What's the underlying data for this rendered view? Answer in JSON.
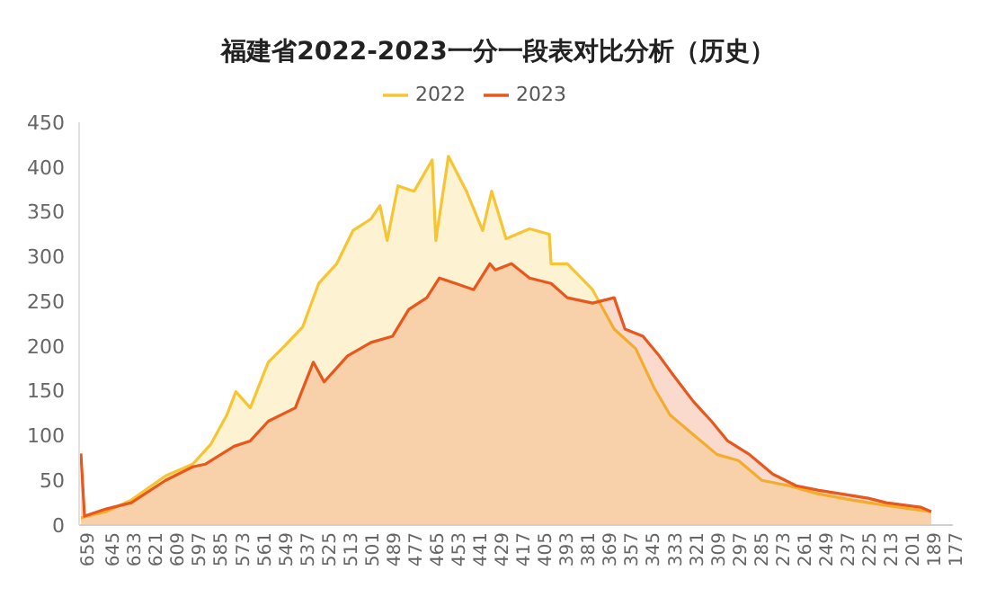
{
  "chart_data": {
    "type": "area",
    "title": "福建省2022-2023一分一段表对比分析（历史）",
    "series": [
      {
        "name": "2022",
        "color": "#f7c531",
        "x": [
          659,
          645,
          631,
          612,
          597,
          587,
          578,
          573,
          565,
          555,
          546,
          536,
          527,
          517,
          508,
          498,
          493,
          489,
          483,
          474,
          464,
          462,
          455,
          445,
          436,
          431,
          423,
          410,
          399,
          398,
          389,
          375,
          363,
          351,
          341,
          332,
          319,
          306,
          294,
          281,
          266,
          250,
          231,
          212,
          187
        ],
        "values": [
          8,
          15,
          28,
          55,
          68,
          90,
          123,
          149,
          131,
          182,
          200,
          221,
          270,
          292,
          329,
          342,
          357,
          318,
          379,
          373,
          408,
          318,
          412,
          373,
          329,
          373,
          320,
          331,
          325,
          292,
          292,
          263,
          219,
          197,
          154,
          123,
          101,
          79,
          72,
          50,
          44,
          35,
          28,
          22,
          15
        ]
      },
      {
        "name": "2023",
        "color": "#e8571c",
        "x": [
          659,
          657,
          645,
          631,
          612,
          597,
          590,
          574,
          565,
          555,
          540,
          530,
          524,
          511,
          498,
          486,
          477,
          467,
          460,
          451,
          441,
          432,
          429,
          420,
          410,
          398,
          389,
          375,
          363,
          357,
          347,
          338,
          330,
          319,
          309,
          300,
          288,
          275,
          262,
          250,
          222,
          212,
          193,
          187
        ],
        "values": [
          80,
          10,
          18,
          25,
          50,
          65,
          68,
          88,
          94,
          116,
          131,
          182,
          160,
          189,
          204,
          211,
          241,
          254,
          276,
          270,
          263,
          292,
          285,
          292,
          276,
          270,
          254,
          248,
          254,
          219,
          211,
          189,
          167,
          138,
          116,
          94,
          79,
          57,
          44,
          39,
          30,
          25,
          20,
          15
        ]
      }
    ],
    "xlim": [
      660,
      175
    ],
    "xticks": [
      659,
      645,
      633,
      621,
      609,
      597,
      585,
      573,
      561,
      549,
      537,
      525,
      513,
      501,
      489,
      477,
      465,
      453,
      441,
      429,
      417,
      405,
      393,
      381,
      369,
      357,
      345,
      333,
      321,
      309,
      297,
      285,
      273,
      261,
      249,
      237,
      225,
      213,
      201,
      189,
      177
    ],
    "ylim": [
      0,
      450
    ],
    "yticks": [
      0,
      50,
      100,
      150,
      200,
      250,
      300,
      350,
      400,
      450
    ],
    "grid": false,
    "legend": "top"
  }
}
